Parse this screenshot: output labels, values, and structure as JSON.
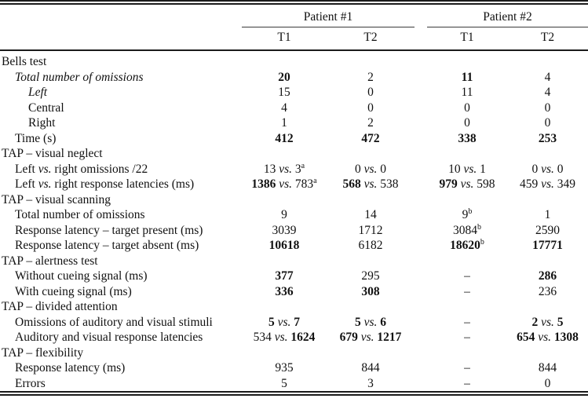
{
  "table": {
    "col_groups": [
      {
        "label": "Patient #1",
        "cols": [
          "T1",
          "T2"
        ]
      },
      {
        "label": "Patient #2",
        "cols": [
          "T1",
          "T2"
        ]
      }
    ],
    "rows": [
      {
        "section": true,
        "indent": 0,
        "label": [
          {
            "t": "Bells test"
          }
        ],
        "values": []
      },
      {
        "indent": 1,
        "label": [
          {
            "t": "Total number of omissions",
            "i": true
          }
        ],
        "values": [
          [
            {
              "t": "20",
              "b": true
            }
          ],
          [
            {
              "t": "2"
            }
          ],
          [
            {
              "t": "11",
              "b": true
            }
          ],
          [
            {
              "t": "4"
            }
          ]
        ]
      },
      {
        "indent": 2,
        "label": [
          {
            "t": "Left",
            "i": true
          }
        ],
        "values": [
          [
            {
              "t": "15"
            }
          ],
          [
            {
              "t": "0"
            }
          ],
          [
            {
              "t": "11"
            }
          ],
          [
            {
              "t": "4"
            }
          ]
        ]
      },
      {
        "indent": 2,
        "label": [
          {
            "t": "Central"
          }
        ],
        "values": [
          [
            {
              "t": "4"
            }
          ],
          [
            {
              "t": "0"
            }
          ],
          [
            {
              "t": "0"
            }
          ],
          [
            {
              "t": "0"
            }
          ]
        ]
      },
      {
        "indent": 2,
        "label": [
          {
            "t": "Right"
          }
        ],
        "values": [
          [
            {
              "t": "1"
            }
          ],
          [
            {
              "t": "2"
            }
          ],
          [
            {
              "t": "0"
            }
          ],
          [
            {
              "t": "0"
            }
          ]
        ]
      },
      {
        "indent": 1,
        "label": [
          {
            "t": "Time (s)"
          }
        ],
        "values": [
          [
            {
              "t": "412",
              "b": true
            }
          ],
          [
            {
              "t": "472",
              "b": true
            }
          ],
          [
            {
              "t": "338",
              "b": true
            }
          ],
          [
            {
              "t": "253",
              "b": true
            }
          ]
        ]
      },
      {
        "section": true,
        "indent": 0,
        "label": [
          {
            "t": "TAP – visual neglect"
          }
        ],
        "values": []
      },
      {
        "indent": 1,
        "label": [
          {
            "t": "Left "
          },
          {
            "t": "vs.",
            "i": true
          },
          {
            "t": " right omissions /22"
          }
        ],
        "values": [
          [
            {
              "t": "13 "
            },
            {
              "t": "vs.",
              "i": true
            },
            {
              "t": " 3"
            },
            {
              "t": "a",
              "s": true
            }
          ],
          [
            {
              "t": "0 "
            },
            {
              "t": "vs.",
              "i": true
            },
            {
              "t": " 0"
            }
          ],
          [
            {
              "t": "10 "
            },
            {
              "t": "vs.",
              "i": true
            },
            {
              "t": " 1"
            }
          ],
          [
            {
              "t": "0 "
            },
            {
              "t": "vs.",
              "i": true
            },
            {
              "t": " 0"
            }
          ]
        ]
      },
      {
        "indent": 1,
        "label": [
          {
            "t": "Left "
          },
          {
            "t": "vs.",
            "i": true
          },
          {
            "t": " right response latencies (ms)"
          }
        ],
        "values": [
          [
            {
              "t": "1386",
              "b": true
            },
            {
              "t": " "
            },
            {
              "t": "vs.",
              "i": true
            },
            {
              "t": " 783"
            },
            {
              "t": "a",
              "s": true
            }
          ],
          [
            {
              "t": "568",
              "b": true
            },
            {
              "t": " "
            },
            {
              "t": "vs.",
              "i": true
            },
            {
              "t": " 538"
            }
          ],
          [
            {
              "t": "979",
              "b": true
            },
            {
              "t": " "
            },
            {
              "t": "vs.",
              "i": true
            },
            {
              "t": " 598"
            }
          ],
          [
            {
              "t": "459 "
            },
            {
              "t": "vs.",
              "i": true
            },
            {
              "t": " 349"
            }
          ]
        ]
      },
      {
        "section": true,
        "indent": 0,
        "label": [
          {
            "t": "TAP – visual scanning"
          }
        ],
        "values": []
      },
      {
        "indent": 1,
        "label": [
          {
            "t": "Total number of omissions"
          }
        ],
        "values": [
          [
            {
              "t": "9"
            }
          ],
          [
            {
              "t": "14"
            }
          ],
          [
            {
              "t": "9"
            },
            {
              "t": "b",
              "s": true
            }
          ],
          [
            {
              "t": "1"
            }
          ]
        ]
      },
      {
        "indent": 1,
        "label": [
          {
            "t": "Response latency – target present (ms)"
          }
        ],
        "values": [
          [
            {
              "t": "3039"
            }
          ],
          [
            {
              "t": "1712"
            }
          ],
          [
            {
              "t": "3084"
            },
            {
              "t": "b",
              "s": true
            }
          ],
          [
            {
              "t": "2590"
            }
          ]
        ]
      },
      {
        "indent": 1,
        "label": [
          {
            "t": "Response latency – target absent (ms)"
          }
        ],
        "values": [
          [
            {
              "t": "10618",
              "b": true
            }
          ],
          [
            {
              "t": "6182"
            }
          ],
          [
            {
              "t": "18620",
              "b": true
            },
            {
              "t": "b",
              "s": true
            }
          ],
          [
            {
              "t": "17771",
              "b": true
            }
          ]
        ]
      },
      {
        "section": true,
        "indent": 0,
        "label": [
          {
            "t": "TAP – alertness test"
          }
        ],
        "values": []
      },
      {
        "indent": 1,
        "label": [
          {
            "t": "Without cueing signal (ms)"
          }
        ],
        "values": [
          [
            {
              "t": "377",
              "b": true
            }
          ],
          [
            {
              "t": "295"
            }
          ],
          [
            {
              "t": "–"
            }
          ],
          [
            {
              "t": "286",
              "b": true
            }
          ]
        ]
      },
      {
        "indent": 1,
        "label": [
          {
            "t": "With cueing signal (ms)"
          }
        ],
        "values": [
          [
            {
              "t": "336",
              "b": true
            }
          ],
          [
            {
              "t": "308",
              "b": true
            }
          ],
          [
            {
              "t": "–"
            }
          ],
          [
            {
              "t": "236"
            }
          ]
        ]
      },
      {
        "section": true,
        "indent": 0,
        "label": [
          {
            "t": "TAP – divided attention"
          }
        ],
        "values": []
      },
      {
        "indent": 1,
        "label": [
          {
            "t": "Omissions of auditory and visual stimuli"
          }
        ],
        "values": [
          [
            {
              "t": "5",
              "b": true
            },
            {
              "t": " "
            },
            {
              "t": "vs.",
              "i": true
            },
            {
              "t": " "
            },
            {
              "t": "7",
              "b": true
            }
          ],
          [
            {
              "t": "5",
              "b": true
            },
            {
              "t": " "
            },
            {
              "t": "vs.",
              "i": true
            },
            {
              "t": " "
            },
            {
              "t": "6",
              "b": true
            }
          ],
          [
            {
              "t": "–"
            }
          ],
          [
            {
              "t": "2",
              "b": true
            },
            {
              "t": " "
            },
            {
              "t": "vs.",
              "i": true
            },
            {
              "t": " "
            },
            {
              "t": "5",
              "b": true
            }
          ]
        ]
      },
      {
        "indent": 1,
        "label": [
          {
            "t": "Auditory and visual response latencies"
          }
        ],
        "values": [
          [
            {
              "t": "534 "
            },
            {
              "t": "vs.",
              "i": true
            },
            {
              "t": " "
            },
            {
              "t": "1624",
              "b": true
            }
          ],
          [
            {
              "t": "679",
              "b": true
            },
            {
              "t": " "
            },
            {
              "t": "vs.",
              "i": true
            },
            {
              "t": " "
            },
            {
              "t": "1217",
              "b": true
            }
          ],
          [
            {
              "t": "–"
            }
          ],
          [
            {
              "t": "654",
              "b": true
            },
            {
              "t": " "
            },
            {
              "t": "vs.",
              "i": true
            },
            {
              "t": " "
            },
            {
              "t": "1308",
              "b": true
            }
          ]
        ]
      },
      {
        "section": true,
        "indent": 0,
        "label": [
          {
            "t": "TAP – flexibility"
          }
        ],
        "values": []
      },
      {
        "indent": 1,
        "label": [
          {
            "t": "Response latency (ms)"
          }
        ],
        "values": [
          [
            {
              "t": "935"
            }
          ],
          [
            {
              "t": "844"
            }
          ],
          [
            {
              "t": "–"
            }
          ],
          [
            {
              "t": "844"
            }
          ]
        ]
      },
      {
        "indent": 1,
        "label": [
          {
            "t": "Errors"
          }
        ],
        "values": [
          [
            {
              "t": "5"
            }
          ],
          [
            {
              "t": "3"
            }
          ],
          [
            {
              "t": "–"
            }
          ],
          [
            {
              "t": "0"
            }
          ]
        ]
      }
    ]
  }
}
